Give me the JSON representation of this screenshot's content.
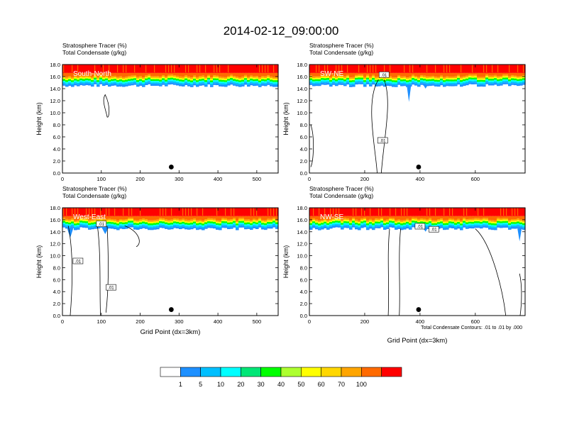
{
  "page": {
    "title": "2014-02-12_09:00:00",
    "footnote": "Total Condensate Contours: .01 to .01 by .000"
  },
  "colorbar": {
    "labels": [
      "1",
      "5",
      "10",
      "20",
      "30",
      "40",
      "50",
      "60",
      "70",
      "100"
    ],
    "colors": [
      "#ffffff",
      "#1e90ff",
      "#00bfff",
      "#00ffff",
      "#00e676",
      "#00ff00",
      "#adff2f",
      "#ffff00",
      "#ffd700",
      "#ffa500",
      "#ff6a00",
      "#ff0000"
    ]
  },
  "chart_data": [
    {
      "type": "heatmap",
      "label": "South-North",
      "title_line1": "Stratosphere Tracer   (%)",
      "title_line2": "Total Condensate   (g/kg)",
      "ylabel": "Height (km)",
      "xlabel": "",
      "xlim": [
        0,
        555
      ],
      "ylim": [
        0,
        18
      ],
      "xticks": [
        "0",
        "100",
        "200",
        "300",
        "400",
        "500"
      ],
      "xtick_values": [
        0,
        100,
        200,
        300,
        400,
        500
      ],
      "yticks": [
        "0.0",
        "2.0",
        "4.0",
        "6.0",
        "8.0",
        "10.0",
        "12.0",
        "14.0",
        "16.0",
        "18.0"
      ],
      "tropopause_km": 15.6,
      "dot": {
        "x": 280,
        "y": 1.0
      },
      "contour_label": ".01"
    },
    {
      "type": "heatmap",
      "label": "SW-NE",
      "title_line1": "Stratosphere Tracer   (%)",
      "title_line2": "Total Condensate   (g/kg)",
      "ylabel": "Height (km)",
      "xlabel": "",
      "xlim": [
        0,
        780
      ],
      "ylim": [
        0,
        18
      ],
      "xticks": [
        "0",
        "200",
        "400",
        "600"
      ],
      "xtick_values": [
        0,
        200,
        400,
        600
      ],
      "yticks": [
        "0.0",
        "2.0",
        "4.0",
        "6.0",
        "8.0",
        "10.0",
        "12.0",
        "14.0",
        "16.0",
        "18.0"
      ],
      "tropopause_km": 15.6,
      "dot": {
        "x": 395,
        "y": 1.0
      },
      "contour_label": ".01"
    },
    {
      "type": "heatmap",
      "label": "West-East",
      "title_line1": "Stratosphere Tracer   (%)",
      "title_line2": "Total Condensate   (g/kg)",
      "ylabel": "Height (km)",
      "xlabel": "Grid Point (dx=3km)",
      "xlim": [
        0,
        555
      ],
      "ylim": [
        0,
        18
      ],
      "xticks": [
        "0",
        "100",
        "200",
        "300",
        "400",
        "500"
      ],
      "xtick_values": [
        0,
        100,
        200,
        300,
        400,
        500
      ],
      "yticks": [
        "0.0",
        "2.0",
        "4.0",
        "6.0",
        "8.0",
        "10.0",
        "12.0",
        "14.0",
        "16.0",
        "18.0"
      ],
      "tropopause_km": 15.6,
      "dot": {
        "x": 280,
        "y": 1.0
      },
      "contour_label": ".01"
    },
    {
      "type": "heatmap",
      "label": "NW-SE",
      "title_line1": "Stratosphere Tracer   (%)",
      "title_line2": "Total Condensate   (g/kg)",
      "ylabel": "Height (km)",
      "xlabel": "Grid Point (dx=3km)",
      "xlim": [
        0,
        780
      ],
      "ylim": [
        0,
        18
      ],
      "xticks": [
        "0",
        "200",
        "400",
        "600"
      ],
      "xtick_values": [
        0,
        200,
        400,
        600
      ],
      "yticks": [
        "0.0",
        "2.0",
        "4.0",
        "6.0",
        "8.0",
        "10.0",
        "12.0",
        "14.0",
        "16.0",
        "18.0"
      ],
      "tropopause_km": 15.6,
      "dot": {
        "x": 395,
        "y": 1.0
      },
      "contour_label": ".01"
    }
  ]
}
